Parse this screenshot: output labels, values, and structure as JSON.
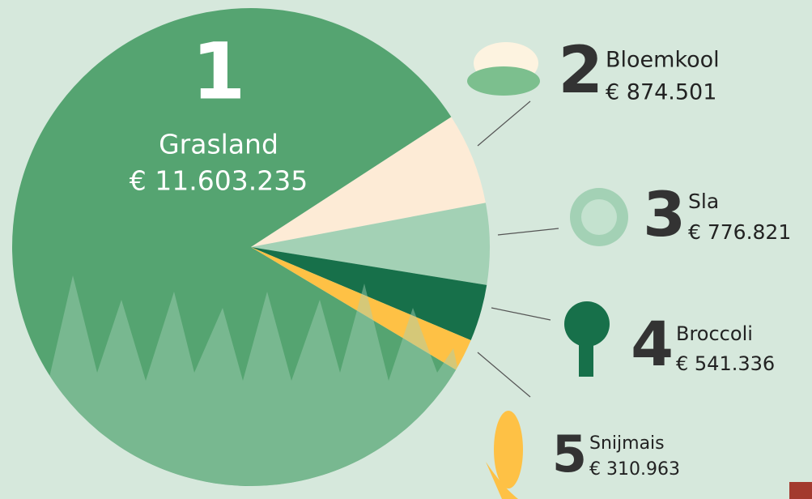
{
  "chart_data": {
    "type": "pie",
    "categories": [
      "Grasland",
      "Bloemkool",
      "Sla",
      "Broccoli",
      "Snijmais"
    ],
    "ranks": [
      "1",
      "2",
      "3",
      "4",
      "5"
    ],
    "values": [
      11603235,
      874501,
      776821,
      541336,
      310963
    ],
    "value_labels": [
      "€ 11.603.235",
      "€ 874.501",
      "€ 776.821",
      "€ 541.336",
      "€ 310.963"
    ],
    "colors": [
      "#55a471",
      "#fdebd6",
      "#a3d1b5",
      "#17704a",
      "#fec145"
    ]
  }
}
